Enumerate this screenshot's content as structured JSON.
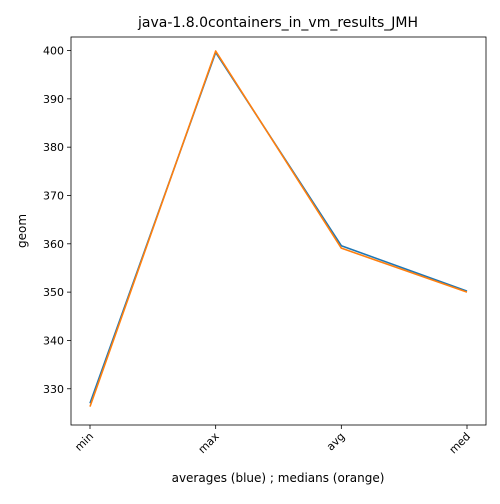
{
  "chart_data": {
    "type": "line",
    "title": "java-1.8.0containers_in_vm_results_JMH",
    "xlabel": "averages (blue) ; medians (orange)",
    "ylabel": "geom",
    "categories": [
      "min",
      "max",
      "avg",
      "med"
    ],
    "ylim": [
      322.5,
      402.8
    ],
    "yticks": [
      330,
      340,
      350,
      360,
      370,
      380,
      390,
      400
    ],
    "grid": false,
    "series": [
      {
        "color": "#1f77b4",
        "values": [
          327.0,
          399.6,
          359.6,
          350.2
        ]
      },
      {
        "color": "#ff7f0e",
        "values": [
          326.3,
          399.9,
          359.1,
          350.0
        ]
      }
    ]
  }
}
